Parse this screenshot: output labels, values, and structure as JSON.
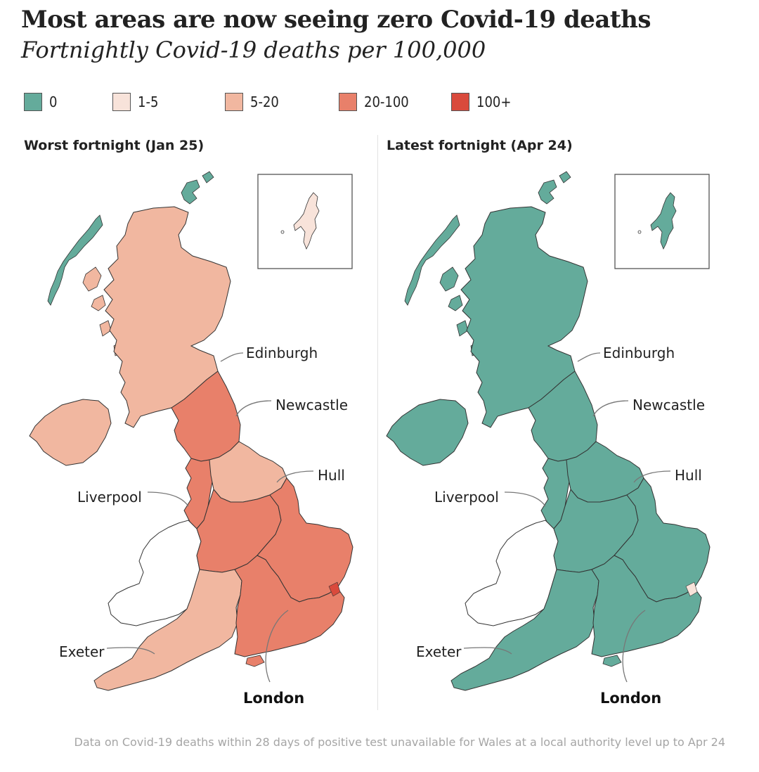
{
  "title": "Most areas are now seeing zero Covid-19 deaths",
  "subtitle": "Fortnightly Covid-19 deaths per 100,000",
  "colors": {
    "zero": "#64ab9b",
    "one_to_five": "#f8e3da",
    "five_to_twenty": "#f1b7a0",
    "twenty_to_hundred": "#e8806a",
    "hundred_plus": "#d94a3c",
    "no_data": "#ffffff",
    "border": "#333333"
  },
  "legend": [
    {
      "label": "0",
      "color": "#64ab9b"
    },
    {
      "label": "1-5",
      "color": "#f8e3da"
    },
    {
      "label": "5-20",
      "color": "#f1b7a0"
    },
    {
      "label": "20-100",
      "color": "#e8806a"
    },
    {
      "label": "100+",
      "color": "#d94a3c"
    }
  ],
  "panels": [
    {
      "title": "Worst fortnight (Jan 25)",
      "scotland_color": "#f1b7a0",
      "north_england_color": "#e8806a",
      "yorkshire_color": "#f1b7a0",
      "midlands_color": "#e8806a",
      "east_color": "#e8806a",
      "southwest_color": "#f1b7a0",
      "london_southeast_color": "#e8806a",
      "ni_color": "#f1b7a0",
      "islands_color": "#64ab9b",
      "shetland_color": "#f8e3da",
      "hotspot_color": "#d94a3c"
    },
    {
      "title": "Latest fortnight (Apr 24)",
      "scotland_color": "#64ab9b",
      "north_england_color": "#64ab9b",
      "yorkshire_color": "#64ab9b",
      "midlands_color": "#64ab9b",
      "east_color": "#64ab9b",
      "southwest_color": "#64ab9b",
      "london_southeast_color": "#64ab9b",
      "ni_color": "#64ab9b",
      "islands_color": "#64ab9b",
      "shetland_color": "#64ab9b",
      "hotspot_color": "#f8e3da"
    }
  ],
  "cities": {
    "edinburgh": "Edinburgh",
    "newcastle": "Newcastle",
    "hull": "Hull",
    "liverpool": "Liverpool",
    "exeter": "Exeter",
    "london": "London"
  },
  "footnote": "Data on Covid-19 deaths within 28 days of positive test unavailable for Wales at a local authority level up to Apr 24"
}
